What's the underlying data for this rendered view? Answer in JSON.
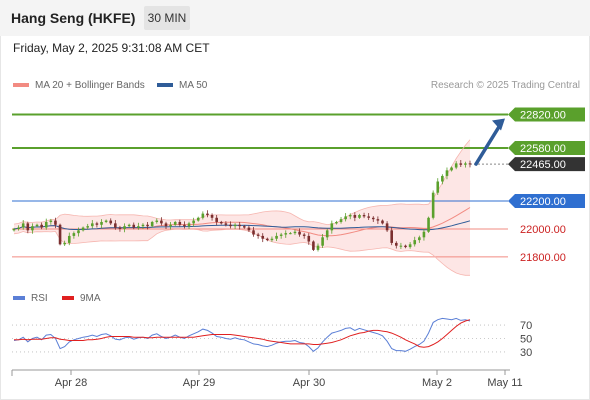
{
  "header": {
    "title": "Hang Seng (HKFE)",
    "timeframe": "30 MIN"
  },
  "datetime": "Friday, May 2, 2025 9:31:08 AM CET",
  "legend": {
    "bollinger": {
      "label": "MA 20 + Bollinger Bands",
      "color": "#f28b82"
    },
    "ma50": {
      "label": "MA 50",
      "color": "#2f5c98"
    },
    "rsi": {
      "label": "RSI",
      "color": "#5b7fd6"
    },
    "rsi_ma": {
      "label": "9MA",
      "color": "#e02020"
    }
  },
  "credit": "Research © 2025 Trading Central",
  "colors": {
    "resistance": "#5aa02c",
    "pivot": "#2f6fd0",
    "support": "#f28b82",
    "current": "#333333",
    "arrow": "#2f5c98",
    "candle_up": "#5aa02c",
    "candle_down": "#7b2f2f"
  },
  "chart_data": {
    "type": "candlestick",
    "x_ticks": [
      "Apr 28",
      "Apr 29",
      "Apr 30",
      "May 2",
      "May 11"
    ],
    "ylim": [
      21670,
      22960
    ],
    "levels": [
      {
        "label": "22820.00",
        "value": 22820,
        "kind": "resistance"
      },
      {
        "label": "22580.00",
        "value": 22580,
        "kind": "resistance"
      },
      {
        "label": "22465.00",
        "value": 22465,
        "kind": "current"
      },
      {
        "label": "22200.00",
        "value": 22200,
        "kind": "pivot"
      },
      {
        "label": "22000.00",
        "value": 22000,
        "kind": "support"
      },
      {
        "label": "21800.00",
        "value": 21800,
        "kind": "support"
      }
    ],
    "target": {
      "from": 22465,
      "to": 22820
    },
    "close": [
      22000,
      22010,
      22040,
      21990,
      22020,
      22030,
      22010,
      22050,
      22060,
      22030,
      21890,
      21900,
      21950,
      21970,
      21990,
      22010,
      22020,
      22040,
      22030,
      22050,
      22060,
      22040,
      22010,
      22000,
      22020,
      22030,
      22010,
      22020,
      22030,
      22020,
      22050,
      22060,
      22040,
      22020,
      22030,
      22050,
      22030,
      22020,
      22040,
      22060,
      22080,
      22110,
      22100,
      22080,
      22050,
      22040,
      22030,
      22020,
      22030,
      22020,
      22010,
      21990,
      21960,
      21950,
      21930,
      21920,
      21930,
      21950,
      21960,
      21970,
      21970,
      21980,
      21960,
      21950,
      21910,
      21850,
      21880,
      21940,
      21990,
      22040,
      22050,
      22070,
      22090,
      22100,
      22080,
      22100,
      22090,
      22080,
      22070,
      22060,
      22040,
      21990,
      21900,
      21880,
      21880,
      21870,
      21890,
      21920,
      21940,
      21980,
      22080,
      22260,
      22340,
      22380,
      22420,
      22440,
      22470,
      22460,
      22470,
      22465
    ],
    "rsi": {
      "levels": [
        70,
        50,
        30
      ],
      "ylim": [
        15,
        85
      ],
      "rsi": [
        47,
        48,
        52,
        45,
        50,
        52,
        48,
        55,
        56,
        50,
        35,
        38,
        45,
        48,
        50,
        52,
        53,
        55,
        53,
        56,
        57,
        54,
        49,
        48,
        51,
        52,
        49,
        51,
        52,
        50,
        55,
        57,
        53,
        50,
        52,
        55,
        52,
        50,
        54,
        57,
        60,
        64,
        62,
        58,
        53,
        52,
        50,
        49,
        51,
        49,
        48,
        45,
        42,
        41,
        39,
        38,
        40,
        43,
        45,
        46,
        46,
        47,
        44,
        43,
        38,
        31,
        36,
        45,
        52,
        58,
        60,
        62,
        65,
        66,
        62,
        65,
        63,
        61,
        59,
        57,
        54,
        46,
        35,
        32,
        32,
        31,
        34,
        38,
        41,
        46,
        58,
        74,
        78,
        80,
        79,
        78,
        80,
        77,
        78,
        76
      ],
      "ma9": [
        48,
        48,
        49,
        48,
        49,
        49,
        49,
        50,
        51,
        51,
        49,
        48,
        47,
        47,
        47,
        47,
        48,
        48,
        49,
        50,
        52,
        53,
        53,
        53,
        53,
        53,
        52,
        52,
        52,
        51,
        51,
        52,
        52,
        52,
        52,
        52,
        52,
        52,
        52,
        52,
        53,
        54,
        55,
        56,
        56,
        56,
        56,
        56,
        55,
        54,
        53,
        52,
        51,
        50,
        49,
        47,
        46,
        45,
        44,
        43,
        42,
        42,
        42,
        42,
        42,
        41,
        41,
        42,
        43,
        44,
        46,
        48,
        51,
        54,
        56,
        58,
        59,
        61,
        62,
        62,
        61,
        60,
        58,
        55,
        52,
        48,
        45,
        42,
        38,
        37,
        38,
        41,
        45,
        50,
        56,
        62,
        68,
        73,
        76,
        78
      ]
    }
  }
}
